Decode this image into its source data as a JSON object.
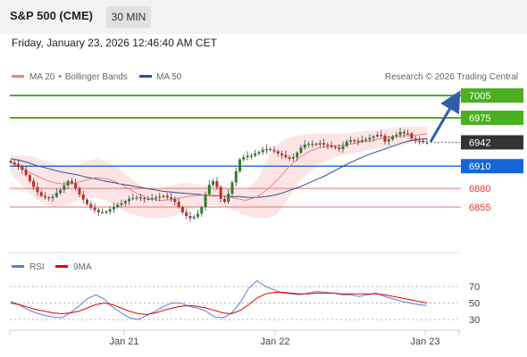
{
  "header": {
    "title": "S&P 500 (CME)",
    "interval": "30 MIN",
    "datetime": "Friday, January 23, 2026 12:46:40 AM CET"
  },
  "legend": {
    "ma20_label": "MA 20 + Bollinger Bands",
    "ma50_label": "MA 50",
    "credit": "Research © 2026 Trading Central",
    "rsi_label": "RSI",
    "rsi_ma_label": "9MA"
  },
  "colors": {
    "candle_up": "#2e7d32",
    "candle_down": "#c62828",
    "ma20": "#f08080",
    "ma50": "#2c4f8f",
    "bollinger_fill": "#fde0e0",
    "resistance": "#4caf20",
    "pivot": "#1565d8",
    "support": "#e57373",
    "last_price": "#333333",
    "arrow": "#2e5fa8",
    "rsi": "#5a7fd6",
    "rsi_ma": "#e00000"
  },
  "chart_data": [
    {
      "type": "line",
      "title": "S&P 500 (CME) 30 MIN",
      "x_tick_labels": [
        "Jan 21",
        "Jan 22",
        "Jan 23"
      ],
      "ylim": [
        6830,
        7015
      ],
      "series": [
        {
          "name": "MA 50",
          "values": [
            6920,
            6918,
            6915,
            6911,
            6908,
            6905,
            6902,
            6900,
            6898,
            6895,
            6893,
            6890,
            6888,
            6886,
            6884,
            6882,
            6880,
            6878,
            6876,
            6875,
            6874,
            6873,
            6872,
            6871,
            6870,
            6870,
            6869,
            6869,
            6868,
            6868,
            6869,
            6871,
            6874,
            6878,
            6882,
            6887,
            6892,
            6897,
            6903,
            6909,
            6915,
            6920,
            6925,
            6929,
            6933,
            6937,
            6941,
            6944,
            6946,
            6947
          ]
        },
        {
          "name": "MA 20",
          "values": [
            6915,
            6908,
            6900,
            6893,
            6888,
            6886,
            6887,
            6891,
            6895,
            6893,
            6888,
            6880,
            6872,
            6866,
            6864,
            6865,
            6868,
            6870,
            6871,
            6871,
            6870,
            6867,
            6864,
            6868,
            6878,
            6892,
            6908,
            6921,
            6930,
            6935,
            6937,
            6938,
            6940,
            6943,
            6945,
            6948,
            6950,
            6951,
            6952,
            6953
          ]
        }
      ],
      "bollinger_upper": [
        6925,
        6925,
        6923,
        6918,
        6913,
        6910,
        6910,
        6915,
        6920,
        6916,
        6908,
        6896,
        6886,
        6880,
        6880,
        6884,
        6887,
        6887,
        6884,
        6884,
        6883,
        6880,
        6878,
        6890,
        6918,
        6940,
        6948,
        6951,
        6953,
        6954,
        6954,
        6954,
        6955,
        6957,
        6958,
        6960,
        6962,
        6963,
        6963,
        6963
      ],
      "bollinger_lower": [
        6900,
        6885,
        6870,
        6860,
        6855,
        6857,
        6862,
        6868,
        6868,
        6863,
        6855,
        6847,
        6843,
        6840,
        6840,
        6842,
        6847,
        6853,
        6857,
        6857,
        6855,
        6850,
        6843,
        6840,
        6840,
        6845,
        6866,
        6888,
        6902,
        6913,
        6920,
        6924,
        6927,
        6930,
        6933,
        6935,
        6937,
        6940,
        6941,
        6942
      ],
      "candle_closes": [
        6915,
        6913,
        6909,
        6905,
        6898,
        6890,
        6882,
        6875,
        6870,
        6868,
        6867,
        6869,
        6874,
        6878,
        6884,
        6890,
        6887,
        6880,
        6872,
        6865,
        6859,
        6854,
        6851,
        6848,
        6848,
        6849,
        6852,
        6855,
        6858,
        6860,
        6863,
        6866,
        6867,
        6868,
        6867,
        6866,
        6866,
        6867,
        6868,
        6869,
        6870,
        6868,
        6866,
        6862,
        6855,
        6848,
        6843,
        6840,
        6842,
        6846,
        6855,
        6872,
        6885,
        6890,
        6882,
        6866,
        6862,
        6873,
        6888,
        6903,
        6919,
        6922,
        6924,
        6924,
        6927,
        6929,
        6932,
        6933,
        6932,
        6930,
        6927,
        6925,
        6922,
        6920,
        6922,
        6928,
        6935,
        6939,
        6940,
        6940,
        6939,
        6941,
        6939,
        6938,
        6936,
        6935,
        6933,
        6937,
        6943,
        6945,
        6944,
        6943,
        6945,
        6946,
        6948,
        6950,
        6952,
        6951,
        6943,
        6946,
        6950,
        6952,
        6956,
        6954,
        6954,
        6947,
        6944,
        6944,
        6942,
        6942
      ]
    },
    {
      "type": "line",
      "title": "RSI",
      "yticks": [
        70,
        50,
        30
      ],
      "ylim": [
        20,
        85
      ],
      "series": [
        {
          "name": "RSI",
          "values": [
            52,
            48,
            42,
            38,
            35,
            33,
            32,
            38,
            46,
            55,
            60,
            55,
            45,
            38,
            32,
            30,
            35,
            40,
            46,
            50,
            50,
            46,
            44,
            40,
            33,
            32,
            38,
            50,
            68,
            77,
            70,
            66,
            62,
            61,
            60,
            62,
            64,
            63,
            62,
            60,
            60,
            58,
            60,
            62,
            58,
            55,
            52,
            50,
            48,
            47
          ]
        },
        {
          "name": "9MA",
          "values": [
            50,
            48,
            45,
            42,
            40,
            38,
            37,
            38,
            40,
            44,
            48,
            50,
            48,
            44,
            40,
            37,
            36,
            38,
            41,
            44,
            46,
            47,
            46,
            44,
            41,
            38,
            37,
            41,
            48,
            56,
            61,
            63,
            63,
            62,
            61,
            61,
            62,
            62,
            62,
            61,
            61,
            61,
            61,
            61,
            60,
            58,
            56,
            54,
            52,
            50
          ]
        }
      ]
    }
  ],
  "levels": [
    {
      "value": "7005",
      "kind": "resistance"
    },
    {
      "value": "6975",
      "kind": "resistance"
    },
    {
      "value": "6942",
      "kind": "last"
    },
    {
      "value": "6910",
      "kind": "pivot"
    },
    {
      "value": "6880",
      "kind": "support"
    },
    {
      "value": "6855",
      "kind": "support"
    }
  ]
}
